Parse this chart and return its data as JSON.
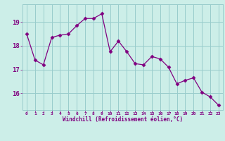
{
  "x": [
    0,
    1,
    2,
    3,
    4,
    5,
    6,
    7,
    8,
    9,
    10,
    11,
    12,
    13,
    14,
    15,
    16,
    17,
    18,
    19,
    20,
    21,
    22,
    23
  ],
  "y": [
    18.5,
    17.4,
    17.2,
    18.35,
    18.45,
    18.5,
    18.85,
    19.15,
    19.15,
    19.35,
    17.75,
    18.2,
    17.75,
    17.25,
    17.2,
    17.55,
    17.45,
    17.1,
    16.4,
    16.55,
    16.65,
    16.05,
    15.85,
    15.5
  ],
  "line_color": "#800080",
  "marker": "D",
  "marker_size": 2.5,
  "bg_color": "#cceee8",
  "grid_color": "#99cccc",
  "xlabel": "Windchill (Refroidissement éolien,°C)",
  "xlabel_color": "#800080",
  "tick_color": "#800080",
  "ylim": [
    15.3,
    19.75
  ],
  "yticks": [
    16,
    17,
    18,
    19
  ],
  "xlim": [
    -0.5,
    23.5
  ],
  "xticks": [
    0,
    1,
    2,
    3,
    4,
    5,
    6,
    7,
    8,
    9,
    10,
    11,
    12,
    13,
    14,
    15,
    16,
    17,
    18,
    19,
    20,
    21,
    22,
    23
  ]
}
